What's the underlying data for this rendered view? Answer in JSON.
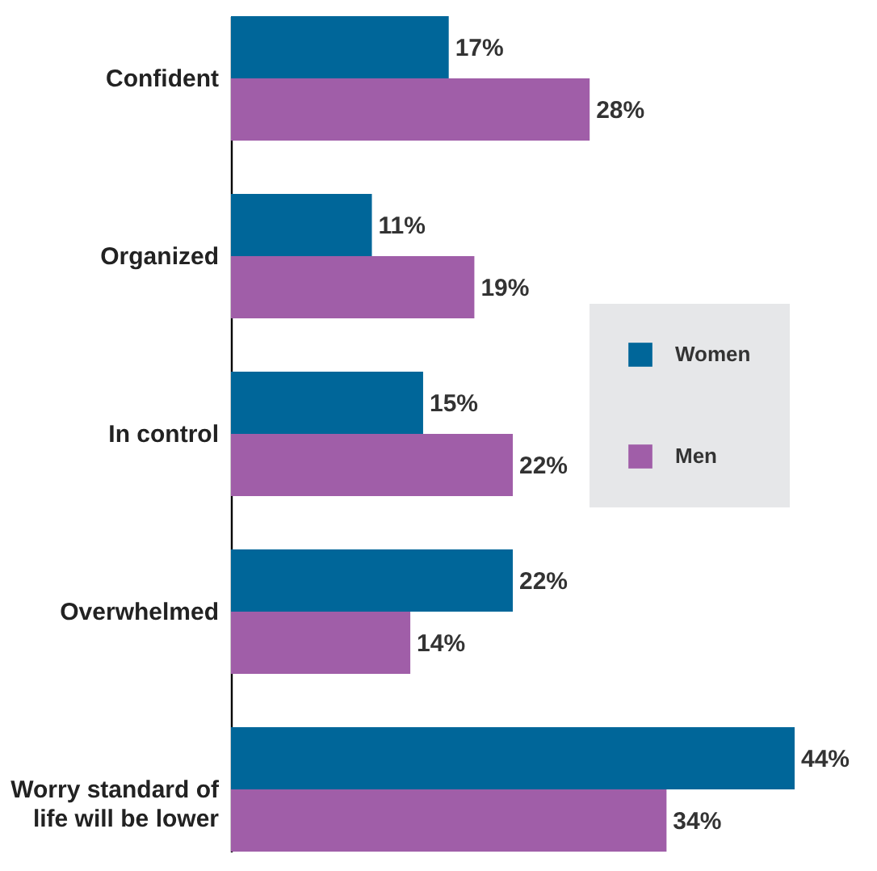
{
  "chart_data": {
    "type": "bar",
    "orientation": "horizontal",
    "categories": [
      "Confident",
      "Organized",
      "In control",
      "Overwhelmed",
      "Worry standard of life will be lower"
    ],
    "series": [
      {
        "name": "Women",
        "color": "#006699",
        "values": [
          17,
          11,
          15,
          22,
          44
        ],
        "value_labels": [
          "17%",
          "11%",
          "15%",
          "22%",
          "44%"
        ]
      },
      {
        "name": "Men",
        "color": "#a05ea8",
        "values": [
          28,
          19,
          22,
          14,
          34
        ],
        "value_labels": [
          "28%",
          "19%",
          "22%",
          "14%",
          "34%"
        ]
      }
    ],
    "legend": "right"
  }
}
